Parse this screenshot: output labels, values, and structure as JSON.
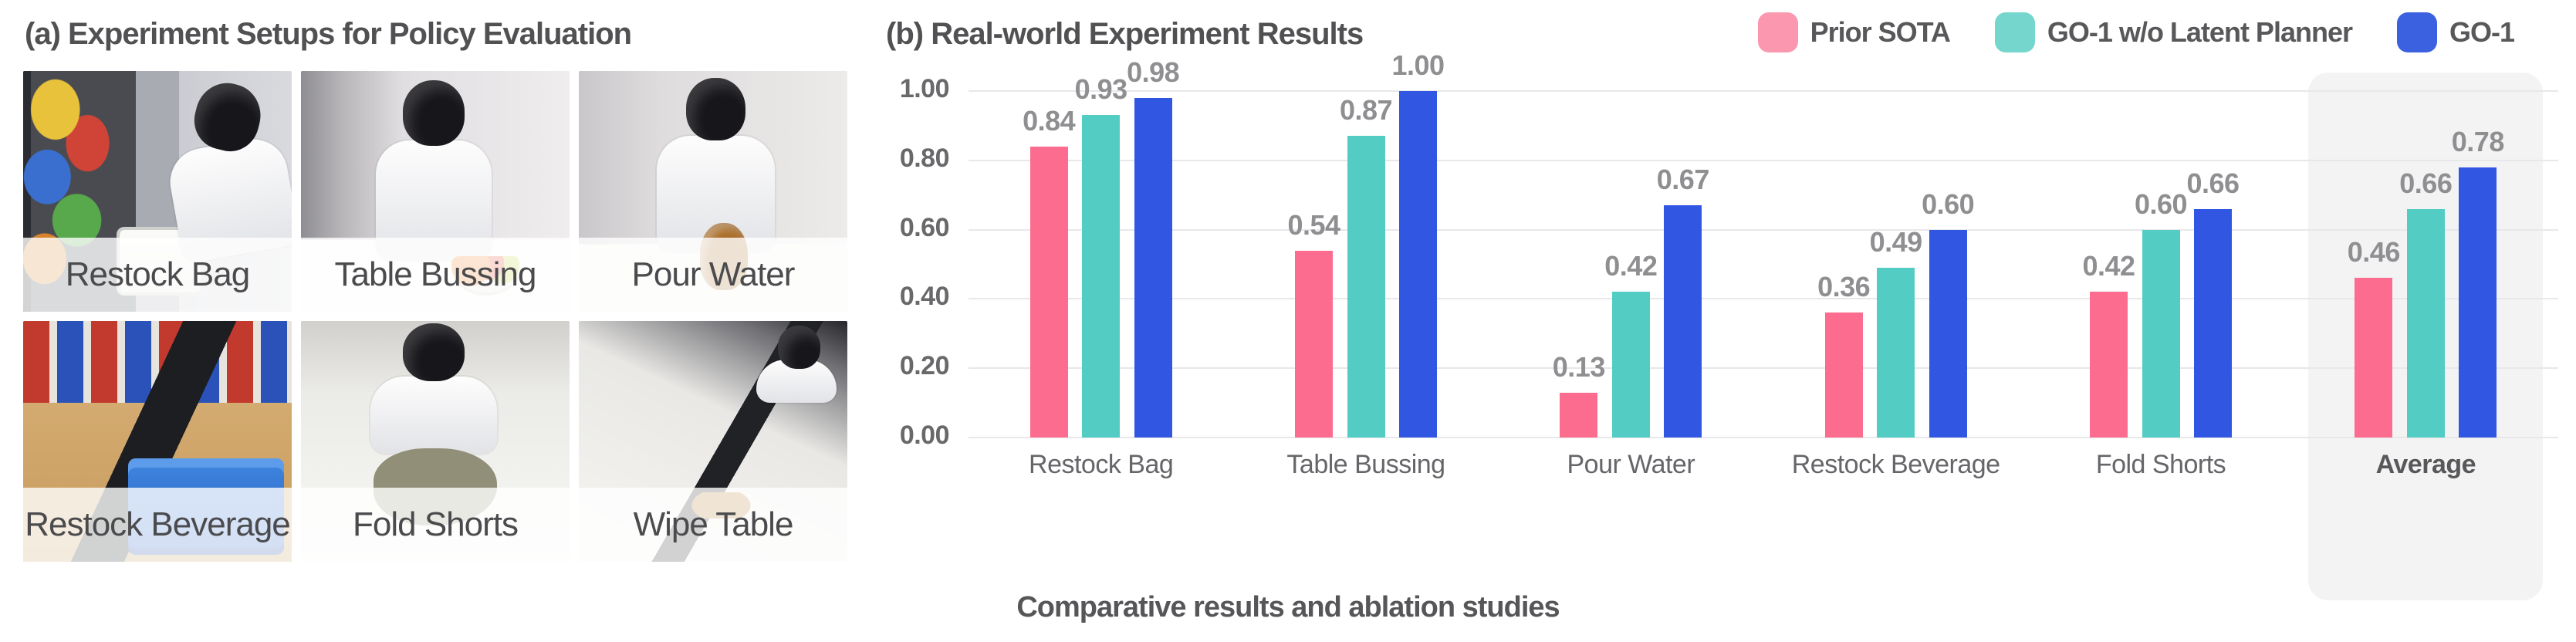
{
  "panel_a": {
    "title": "(a) Experiment Setups for Policy Evaluation",
    "photos": [
      {
        "label": "Restock Bag"
      },
      {
        "label": "Table Bussing"
      },
      {
        "label": "Pour Water"
      },
      {
        "label": "Restock Beverage"
      },
      {
        "label": "Fold Shorts"
      },
      {
        "label": "Wipe Table"
      }
    ]
  },
  "panel_b": {
    "title": "(b) Real-world Experiment Results",
    "caption": "Comparative results and ablation studies"
  },
  "colors": {
    "grid": "#e8e8ea",
    "highlight_box": "#f3f3f4",
    "bar_pink": "#fb6c8e",
    "bar_teal": "#53cdc3",
    "bar_blue": "#3156e2"
  },
  "chart_data": {
    "type": "bar",
    "title": "(b) Real-world Experiment Results",
    "categories": [
      "Restock Bag",
      "Table Bussing",
      "Pour Water",
      "Restock Beverage",
      "Fold Shorts",
      "Average"
    ],
    "series": [
      {
        "name": "Prior SOTA",
        "color": "#fb6c8e",
        "legend_color": "#fb97af",
        "values": [
          0.84,
          0.54,
          0.13,
          0.36,
          0.42,
          0.46
        ]
      },
      {
        "name": "GO-1 w/o Latent Planner",
        "color": "#53cdc3",
        "legend_color": "#74d6cd",
        "values": [
          0.93,
          0.87,
          0.42,
          0.49,
          0.6,
          0.66
        ]
      },
      {
        "name": "GO-1",
        "color": "#3156e2",
        "legend_color": "#3c61e0",
        "values": [
          0.98,
          1.0,
          0.67,
          0.6,
          0.66,
          0.78
        ]
      }
    ],
    "ylim": [
      0.0,
      1.0
    ],
    "yticks": [
      "0.00",
      "0.20",
      "0.40",
      "0.60",
      "0.80",
      "1.00"
    ],
    "grid": true,
    "legend_position": "top-right",
    "highlighted_category": "Average",
    "value_labels_decimals": 2,
    "xlabel": "",
    "ylabel": "",
    "caption": "Comparative results and ablation studies"
  }
}
